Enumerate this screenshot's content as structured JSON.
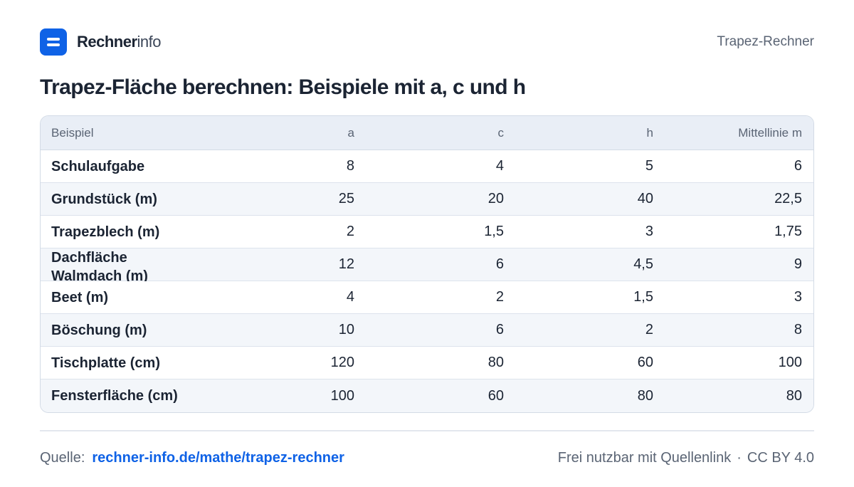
{
  "header": {
    "brand_strong": "Rechner",
    "brand_light": "info",
    "page_label": "Trapez-Rechner"
  },
  "title": "Trapez-Fläche berechnen: Beispiele mit a, c und h",
  "table": {
    "columns": [
      "Beispiel",
      "a",
      "c",
      "h",
      "Mittellinie m"
    ],
    "rows": [
      [
        "Schulaufgabe",
        "8",
        "4",
        "5",
        "6"
      ],
      [
        "Grundstück (m)",
        "25",
        "20",
        "40",
        "22,5"
      ],
      [
        "Trapezblech (m)",
        "2",
        "1,5",
        "3",
        "1,75"
      ],
      [
        "Dachfläche Walmdach (m)",
        "12",
        "6",
        "4,5",
        "9"
      ],
      [
        "Beet (m)",
        "4",
        "2",
        "1,5",
        "3"
      ],
      [
        "Böschung (m)",
        "10",
        "6",
        "2",
        "8"
      ],
      [
        "Tischplatte (cm)",
        "120",
        "80",
        "60",
        "100"
      ],
      [
        "Fensterfläche (cm)",
        "100",
        "60",
        "80",
        "80"
      ]
    ]
  },
  "footer": {
    "source_label": "Quelle:",
    "source_link": "rechner-info.de/mathe/trapez-rechner",
    "license_text": "Frei nutzbar mit Quellenlink",
    "separator": "·",
    "license": "CC BY 4.0"
  },
  "colors": {
    "accent": "#0f62e6",
    "header_bg": "#e9eef6",
    "alt_row_bg": "#f3f6fa"
  }
}
